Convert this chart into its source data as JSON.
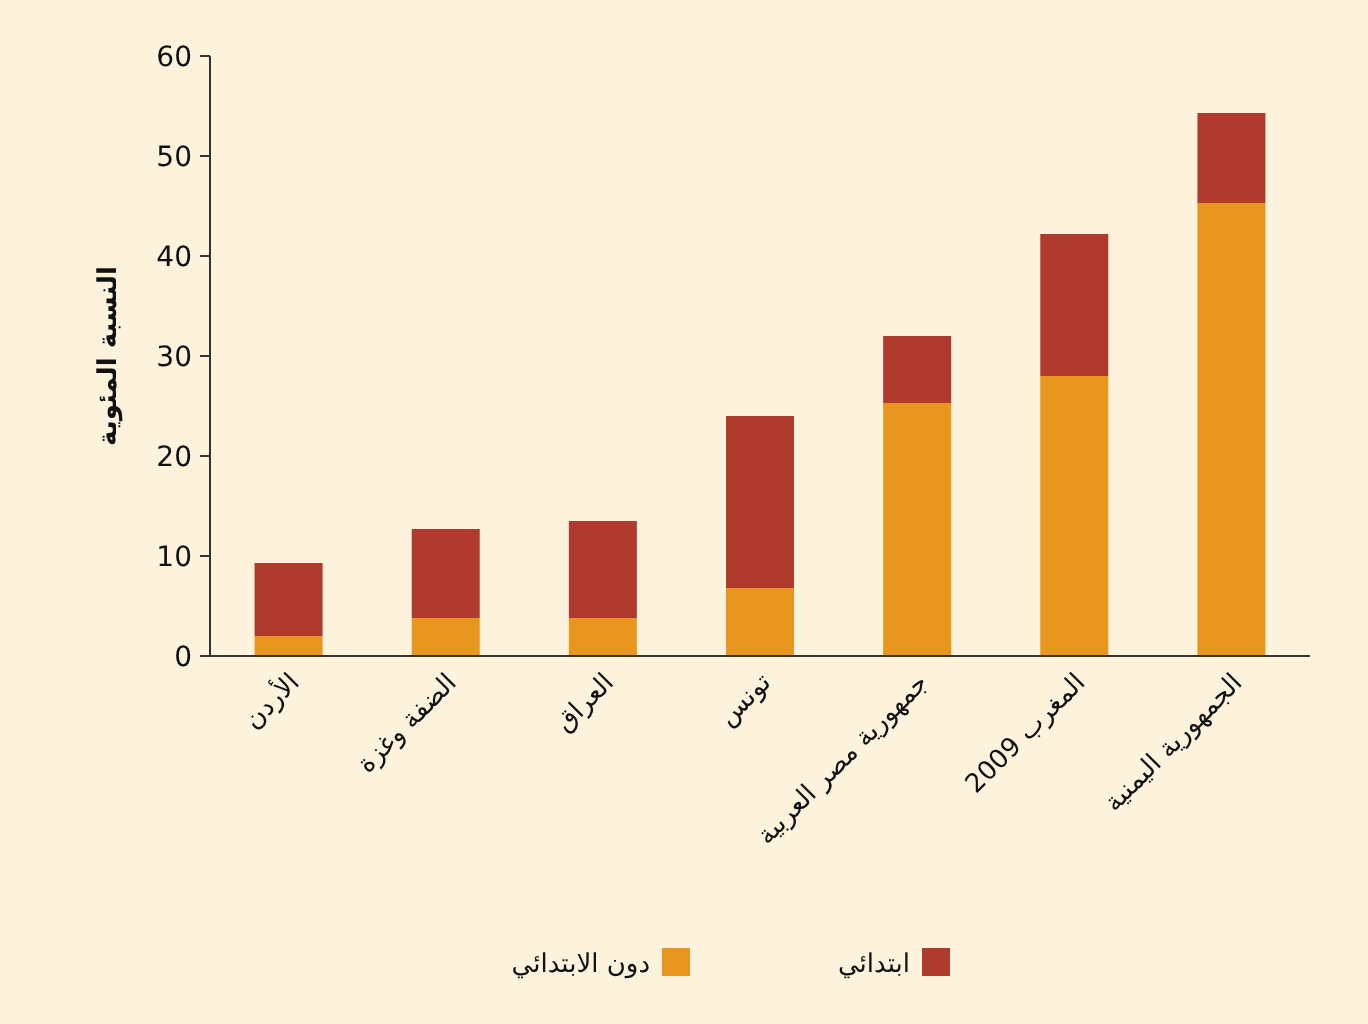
{
  "chart_data": {
    "type": "bar",
    "stacked": true,
    "ylabel": "النسبة المئوية",
    "categories": [
      "الأردن",
      "الضفة وغزة",
      "العراق",
      "تونس",
      "جمهورية مصر العربية",
      "المغرب 2009",
      "الجمهورية اليمنية"
    ],
    "series": [
      {
        "name": "دون الابتدائي",
        "color": "#e8961e",
        "values": [
          2.0,
          3.8,
          3.8,
          6.8,
          25.3,
          28.0,
          45.3
        ]
      },
      {
        "name": "ابتدائي",
        "color": "#b03a2e",
        "values": [
          7.3,
          8.9,
          9.7,
          17.2,
          6.7,
          14.2,
          9.0
        ]
      }
    ],
    "ylim": [
      0,
      60
    ],
    "yticks": [
      0,
      10,
      20,
      30,
      40,
      50,
      60
    ],
    "grid": false,
    "legend": "bottom"
  }
}
